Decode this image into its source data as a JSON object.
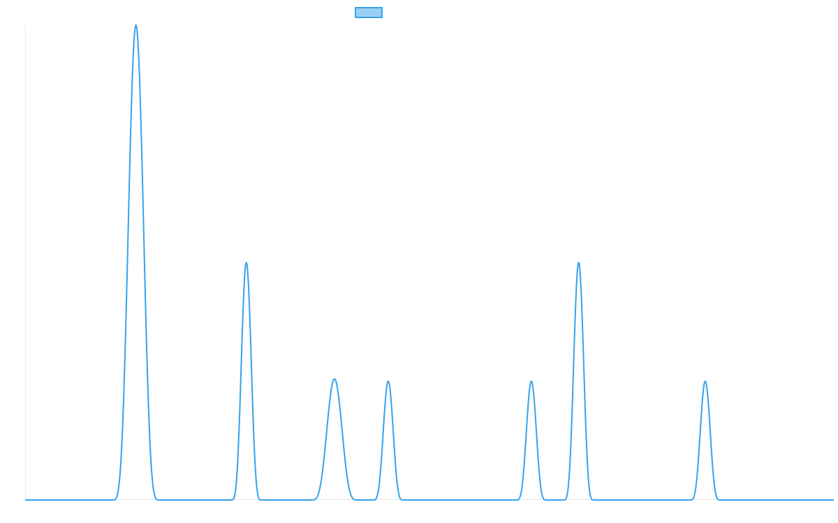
{
  "chart_data": {
    "type": "line",
    "title": "",
    "xlabel": "",
    "ylabel": "",
    "grid": false,
    "legend_position": "top",
    "series": [
      {
        "name": "",
        "color": "#36a2eb",
        "fill": false
      }
    ],
    "x_range": [
      0,
      1000
    ],
    "ylim": [
      0,
      100
    ],
    "peaks": [
      {
        "center": 137.0,
        "height": 100,
        "width": 58
      },
      {
        "center": 273.5,
        "height": 50,
        "width": 38
      },
      {
        "center": 382.5,
        "height": 25.5,
        "width": 58
      },
      {
        "center": 449.0,
        "height": 25,
        "width": 38
      },
      {
        "center": 626.0,
        "height": 25,
        "width": 38
      },
      {
        "center": 684.5,
        "height": 50,
        "width": 38
      },
      {
        "center": 841.0,
        "height": 25,
        "width": 38
      }
    ]
  }
}
